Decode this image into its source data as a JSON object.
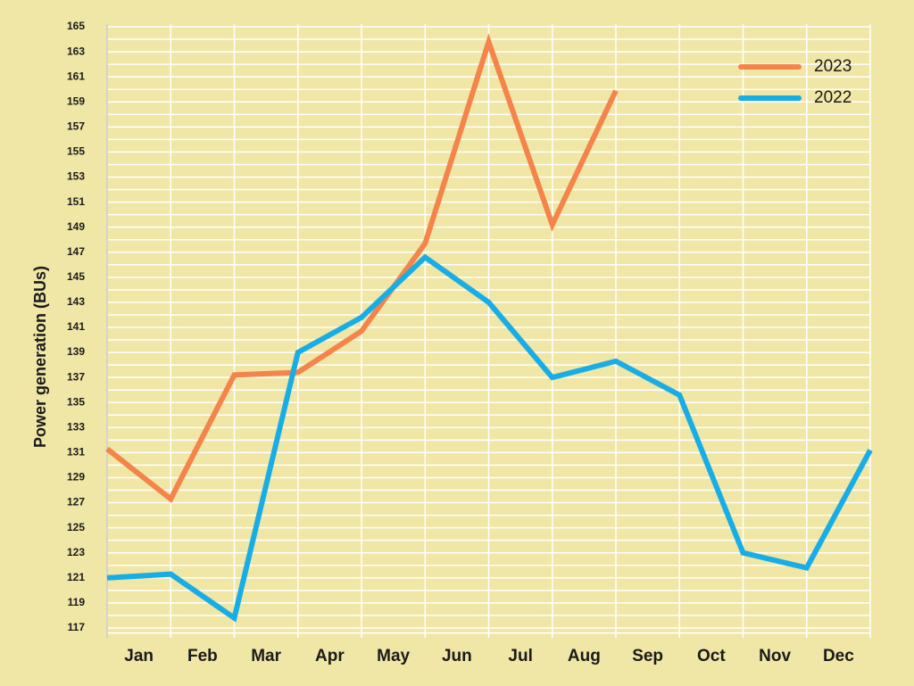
{
  "chart_data": {
    "type": "line",
    "y_label": "Power generation (BUs)",
    "categories": [
      "Jan",
      "Feb",
      "Mar",
      "Apr",
      "May",
      "Jun",
      "Jul",
      "Aug",
      "Sep",
      "Oct",
      "Nov",
      "Dec",
      null
    ],
    "series": [
      {
        "name": "2023",
        "color": "#f4844a",
        "values": [
          131.3,
          127.3,
          137.2,
          137.4,
          140.7,
          147.7,
          163.8,
          149.2,
          159.9,
          null,
          null,
          null,
          null
        ]
      },
      {
        "name": "2022",
        "color": "#19ade6",
        "values": [
          121.0,
          121.3,
          117.8,
          139.0,
          141.8,
          146.6,
          143.0,
          137.0,
          138.3,
          135.6,
          123.0,
          121.8,
          131.2
        ]
      }
    ],
    "ylim": [
      116.2,
      165.2
    ],
    "yticks": [
      117,
      119,
      121,
      123,
      125,
      127,
      129,
      131,
      133,
      135,
      137,
      139,
      141,
      143,
      145,
      147,
      149,
      151,
      153,
      155,
      157,
      159,
      161,
      163,
      165
    ],
    "grid": true,
    "legend": "upper right"
  }
}
